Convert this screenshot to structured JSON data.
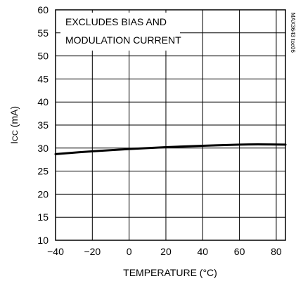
{
  "chart_data": {
    "type": "line",
    "xlabel": "TEMPERATURE (°C)",
    "ylabel": "I",
    "ylabel_subscript": "CC",
    "ylabel_unit": " (mA)",
    "xlim": [
      -40,
      85
    ],
    "ylim": [
      10,
      60
    ],
    "x_ticks": [
      -40,
      -20,
      0,
      20,
      40,
      60,
      80
    ],
    "y_ticks": [
      10,
      15,
      20,
      25,
      30,
      35,
      40,
      45,
      50,
      55,
      60
    ],
    "grid": true,
    "annotation_lines": [
      "EXCLUDES BIAS AND",
      "MODULATION CURRENT"
    ],
    "watermark": "MAX3643 toc06",
    "series": [
      {
        "x": [
          -40,
          -20,
          0,
          20,
          40,
          60,
          70,
          85
        ],
        "y": [
          28.7,
          29.3,
          29.8,
          30.2,
          30.5,
          30.75,
          30.8,
          30.75
        ]
      }
    ]
  }
}
